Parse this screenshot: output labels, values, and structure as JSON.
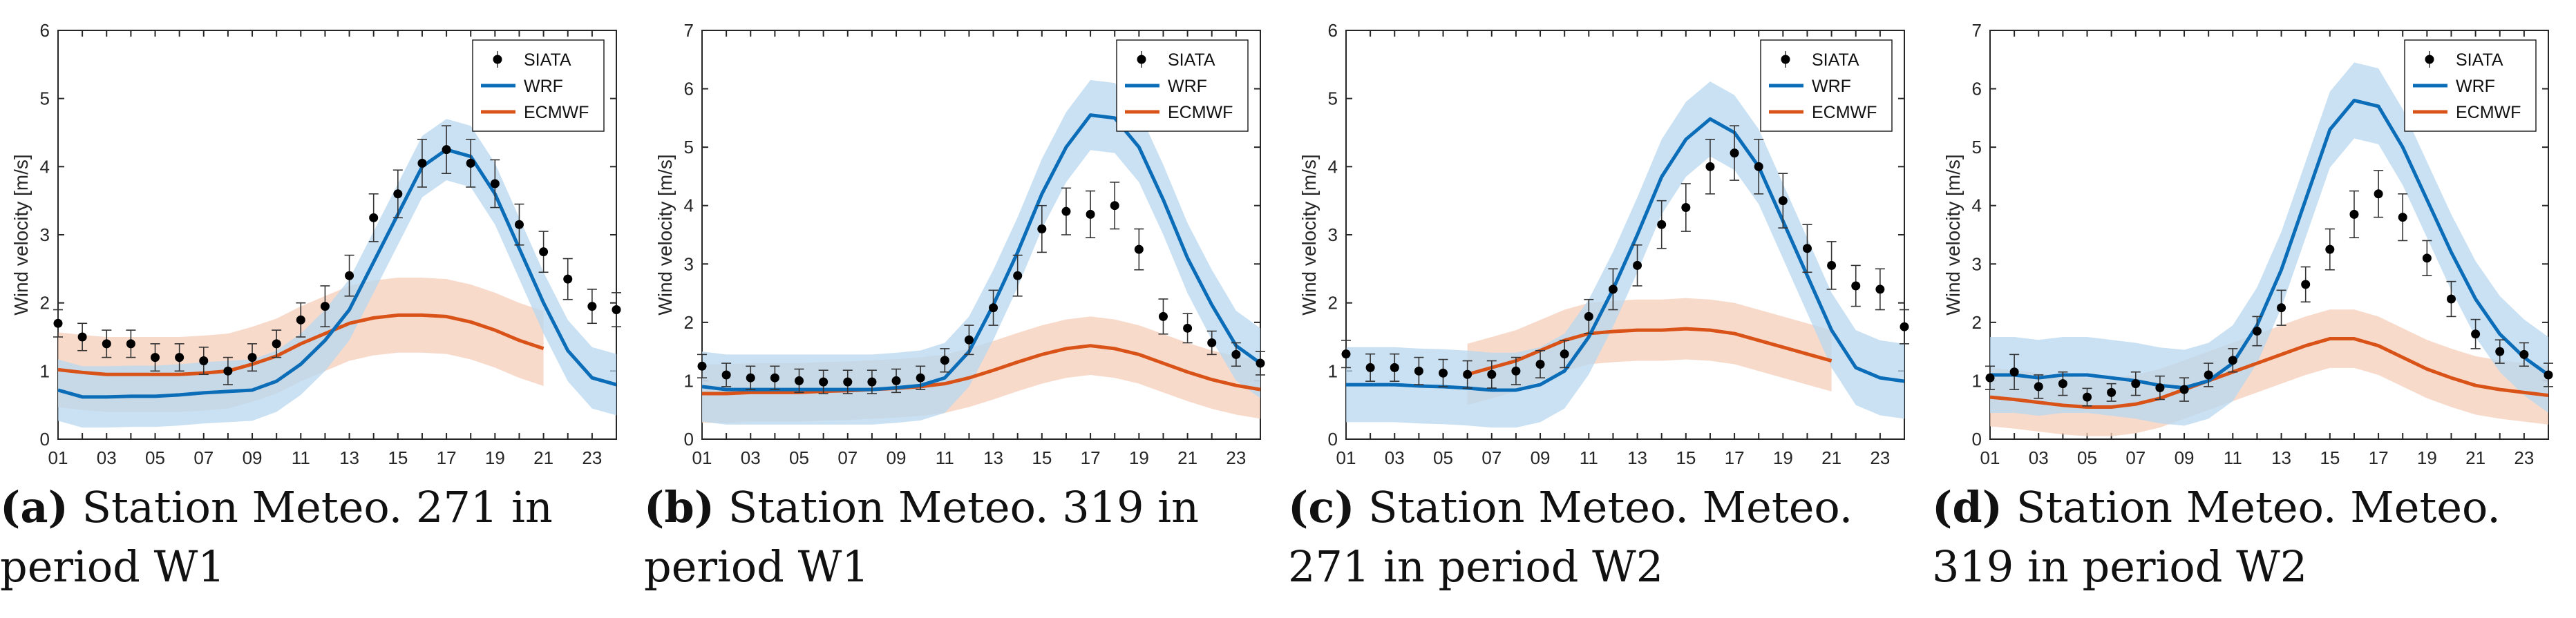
{
  "figure": {
    "panels": [
      {
        "label": "(a)",
        "caption": "Station Meteo.  271 in period W1"
      },
      {
        "label": "(b)",
        "caption": "Station Meteo.  319 in period W1"
      },
      {
        "label": "(c)",
        "caption": "Station Meteo. Meteo. 271 in period W2"
      },
      {
        "label": "(d)",
        "caption": "Station Meteo. Meteo. 319 in period W2"
      }
    ]
  },
  "colors": {
    "siata": "#000000",
    "wrf": "#0b6cb8",
    "wrf_band": "#b7d7ef",
    "ecmwf": "#d95319",
    "ecmwf_band": "#f6cdb9"
  },
  "chart_data": [
    {
      "type": "line",
      "title": "",
      "xlabel": "",
      "ylabel": "Wind velocity [m/s]",
      "ylim": [
        0,
        6
      ],
      "yticks": [
        "0",
        "1",
        "2",
        "3",
        "4",
        "5",
        "6"
      ],
      "xticks": [
        "01",
        "03",
        "05",
        "07",
        "09",
        "11",
        "13",
        "15",
        "17",
        "19",
        "21",
        "23"
      ],
      "legend": [
        "SIATA",
        "WRF",
        "ECMWF"
      ],
      "legend_position": "top-right",
      "series": [
        {
          "name": "SIATA",
          "kind": "errorbar",
          "x": [
            1,
            2,
            3,
            4,
            5,
            6,
            7,
            8,
            9,
            10,
            11,
            12,
            13,
            14,
            15,
            16,
            17,
            18,
            19,
            20,
            21,
            22,
            23,
            24
          ],
          "values": [
            1.7,
            1.5,
            1.4,
            1.4,
            1.2,
            1.2,
            1.15,
            1.0,
            1.2,
            1.4,
            1.75,
            1.95,
            2.4,
            3.25,
            3.6,
            4.05,
            4.25,
            4.05,
            3.75,
            3.15,
            2.75,
            2.35,
            1.95,
            1.9
          ],
          "err": [
            0.2,
            0.2,
            0.2,
            0.2,
            0.2,
            0.2,
            0.2,
            0.2,
            0.2,
            0.2,
            0.25,
            0.3,
            0.3,
            0.35,
            0.35,
            0.35,
            0.35,
            0.35,
            0.35,
            0.3,
            0.3,
            0.3,
            0.25,
            0.25
          ]
        },
        {
          "name": "WRF",
          "kind": "line",
          "x": [
            1,
            2,
            3,
            4,
            5,
            6,
            7,
            8,
            9,
            10,
            11,
            12,
            13,
            14,
            15,
            16,
            17,
            18,
            19,
            20,
            21,
            22,
            23,
            24
          ],
          "values": [
            0.72,
            0.62,
            0.62,
            0.63,
            0.63,
            0.65,
            0.68,
            0.7,
            0.72,
            0.85,
            1.1,
            1.45,
            1.9,
            2.6,
            3.3,
            4.0,
            4.25,
            4.15,
            3.6,
            2.8,
            2.0,
            1.3,
            0.9,
            0.8
          ],
          "band": 0.45
        },
        {
          "name": "ECMWF",
          "kind": "line",
          "x": [
            1,
            2,
            3,
            4,
            5,
            6,
            7,
            8,
            9,
            10,
            11,
            12,
            13,
            14,
            15,
            16,
            17,
            18,
            19,
            20,
            21
          ],
          "values": [
            1.02,
            0.98,
            0.95,
            0.95,
            0.95,
            0.95,
            0.97,
            1.0,
            1.1,
            1.22,
            1.4,
            1.55,
            1.7,
            1.78,
            1.82,
            1.82,
            1.8,
            1.72,
            1.6,
            1.45,
            1.33
          ],
          "band": 0.55
        }
      ]
    },
    {
      "type": "line",
      "title": "",
      "xlabel": "",
      "ylabel": "Wind velocity [m/s]",
      "ylim": [
        0,
        7
      ],
      "yticks": [
        "0",
        "1",
        "2",
        "3",
        "4",
        "5",
        "6",
        "7"
      ],
      "xticks": [
        "01",
        "03",
        "05",
        "07",
        "09",
        "11",
        "13",
        "15",
        "17",
        "19",
        "21",
        "23"
      ],
      "legend": [
        "SIATA",
        "WRF",
        "ECMWF"
      ],
      "legend_position": "top-right",
      "series": [
        {
          "name": "SIATA",
          "kind": "errorbar",
          "x": [
            1,
            2,
            3,
            4,
            5,
            6,
            7,
            8,
            9,
            10,
            11,
            12,
            13,
            14,
            15,
            16,
            17,
            18,
            19,
            20,
            21,
            22,
            23,
            24
          ],
          "values": [
            1.25,
            1.1,
            1.05,
            1.05,
            1.0,
            0.98,
            0.98,
            0.98,
            1.0,
            1.05,
            1.35,
            1.7,
            2.25,
            2.8,
            3.6,
            3.9,
            3.85,
            4.0,
            3.25,
            2.1,
            1.9,
            1.65,
            1.45,
            1.3
          ],
          "err": [
            0.2,
            0.2,
            0.2,
            0.2,
            0.2,
            0.2,
            0.2,
            0.2,
            0.2,
            0.2,
            0.2,
            0.25,
            0.3,
            0.35,
            0.4,
            0.4,
            0.4,
            0.4,
            0.35,
            0.3,
            0.25,
            0.2,
            0.2,
            0.2
          ]
        },
        {
          "name": "WRF",
          "kind": "line",
          "x": [
            1,
            2,
            3,
            4,
            5,
            6,
            7,
            8,
            9,
            10,
            11,
            12,
            13,
            14,
            15,
            16,
            17,
            18,
            19,
            20,
            21,
            22,
            23,
            24
          ],
          "values": [
            0.9,
            0.85,
            0.85,
            0.85,
            0.85,
            0.85,
            0.85,
            0.85,
            0.88,
            0.92,
            1.05,
            1.5,
            2.3,
            3.2,
            4.2,
            5.0,
            5.55,
            5.5,
            5.0,
            4.1,
            3.1,
            2.3,
            1.6,
            1.3
          ],
          "band": 0.6
        },
        {
          "name": "ECMWF",
          "kind": "line",
          "x": [
            1,
            2,
            3,
            4,
            5,
            6,
            7,
            8,
            9,
            10,
            11,
            12,
            13,
            14,
            15,
            16,
            17,
            18,
            19,
            20,
            21,
            22,
            23,
            24
          ],
          "values": [
            0.78,
            0.78,
            0.8,
            0.8,
            0.8,
            0.82,
            0.83,
            0.85,
            0.87,
            0.9,
            0.95,
            1.05,
            1.18,
            1.32,
            1.45,
            1.55,
            1.6,
            1.55,
            1.45,
            1.3,
            1.15,
            1.02,
            0.92,
            0.85
          ],
          "band": 0.5
        }
      ]
    },
    {
      "type": "line",
      "title": "",
      "xlabel": "",
      "ylabel": "Wind velocity [m/s]",
      "ylim": [
        0,
        6
      ],
      "yticks": [
        "0",
        "1",
        "2",
        "3",
        "4",
        "5",
        "6"
      ],
      "xticks": [
        "01",
        "03",
        "05",
        "07",
        "09",
        "11",
        "13",
        "15",
        "17",
        "19",
        "21",
        "23"
      ],
      "legend": [
        "SIATA",
        "WRF",
        "ECMWF"
      ],
      "legend_position": "top-right",
      "series": [
        {
          "name": "SIATA",
          "kind": "errorbar",
          "x": [
            1,
            2,
            3,
            4,
            5,
            6,
            7,
            8,
            9,
            10,
            11,
            12,
            13,
            14,
            15,
            16,
            17,
            18,
            19,
            20,
            21,
            22,
            23,
            24
          ],
          "values": [
            1.25,
            1.05,
            1.05,
            1.0,
            0.97,
            0.95,
            0.95,
            1.0,
            1.1,
            1.25,
            1.8,
            2.2,
            2.55,
            3.15,
            3.4,
            4.0,
            4.2,
            4.0,
            3.5,
            2.8,
            2.55,
            2.25,
            2.2,
            1.65
          ],
          "err": [
            0.2,
            0.2,
            0.2,
            0.2,
            0.2,
            0.2,
            0.2,
            0.2,
            0.2,
            0.2,
            0.25,
            0.3,
            0.3,
            0.35,
            0.35,
            0.4,
            0.4,
            0.4,
            0.4,
            0.35,
            0.35,
            0.3,
            0.3,
            0.25
          ]
        },
        {
          "name": "WRF",
          "kind": "line",
          "x": [
            1,
            2,
            3,
            4,
            5,
            6,
            7,
            8,
            9,
            10,
            11,
            12,
            13,
            14,
            15,
            16,
            17,
            18,
            19,
            20,
            21,
            22,
            23,
            24
          ],
          "values": [
            0.8,
            0.8,
            0.8,
            0.78,
            0.77,
            0.75,
            0.72,
            0.72,
            0.8,
            1.0,
            1.5,
            2.2,
            3.0,
            3.85,
            4.4,
            4.7,
            4.5,
            4.0,
            3.2,
            2.4,
            1.6,
            1.05,
            0.9,
            0.85
          ],
          "band": 0.55
        },
        {
          "name": "ECMWF",
          "kind": "line",
          "x": [
            6,
            7,
            8,
            9,
            10,
            11,
            12,
            13,
            14,
            15,
            16,
            17,
            18,
            19,
            20,
            21
          ],
          "values": [
            0.95,
            1.05,
            1.15,
            1.3,
            1.45,
            1.55,
            1.58,
            1.6,
            1.6,
            1.62,
            1.6,
            1.55,
            1.45,
            1.35,
            1.25,
            1.15
          ],
          "band": 0.45
        }
      ]
    },
    {
      "type": "line",
      "title": "",
      "xlabel": "",
      "ylabel": "Wind velocity [m/s]",
      "ylim": [
        0,
        7
      ],
      "yticks": [
        "0",
        "1",
        "2",
        "3",
        "4",
        "5",
        "6",
        "7"
      ],
      "xticks": [
        "01",
        "03",
        "05",
        "07",
        "09",
        "11",
        "13",
        "15",
        "17",
        "19",
        "21",
        "23"
      ],
      "legend": [
        "SIATA",
        "WRF",
        "ECMWF"
      ],
      "legend_position": "top-right",
      "series": [
        {
          "name": "SIATA",
          "kind": "errorbar",
          "x": [
            1,
            2,
            3,
            4,
            5,
            6,
            7,
            8,
            9,
            10,
            11,
            12,
            13,
            14,
            15,
            16,
            17,
            18,
            19,
            20,
            21,
            22,
            23,
            24
          ],
          "values": [
            1.05,
            1.15,
            0.9,
            0.95,
            0.72,
            0.8,
            0.95,
            0.88,
            0.85,
            1.1,
            1.35,
            1.85,
            2.25,
            2.65,
            3.25,
            3.85,
            4.2,
            3.8,
            3.1,
            2.4,
            1.8,
            1.5,
            1.45,
            1.1
          ],
          "err": [
            0.2,
            0.3,
            0.2,
            0.2,
            0.15,
            0.15,
            0.2,
            0.2,
            0.2,
            0.2,
            0.2,
            0.25,
            0.3,
            0.3,
            0.35,
            0.4,
            0.4,
            0.4,
            0.3,
            0.3,
            0.25,
            0.2,
            0.2,
            0.2
          ]
        },
        {
          "name": "WRF",
          "kind": "line",
          "x": [
            1,
            2,
            3,
            4,
            5,
            6,
            7,
            8,
            9,
            10,
            11,
            12,
            13,
            14,
            15,
            16,
            17,
            18,
            19,
            20,
            21,
            22,
            23,
            24
          ],
          "values": [
            1.1,
            1.1,
            1.05,
            1.1,
            1.1,
            1.05,
            1.0,
            0.92,
            0.88,
            1.0,
            1.3,
            1.95,
            2.9,
            4.1,
            5.3,
            5.8,
            5.7,
            5.0,
            4.1,
            3.2,
            2.4,
            1.8,
            1.4,
            1.1
          ],
          "band": 0.65
        },
        {
          "name": "ECMWF",
          "kind": "line",
          "x": [
            1,
            2,
            3,
            4,
            5,
            6,
            7,
            8,
            9,
            10,
            11,
            12,
            13,
            14,
            15,
            16,
            17,
            18,
            19,
            20,
            21,
            22,
            23,
            24
          ],
          "values": [
            0.72,
            0.68,
            0.63,
            0.58,
            0.55,
            0.55,
            0.6,
            0.7,
            0.85,
            1.0,
            1.15,
            1.3,
            1.45,
            1.6,
            1.72,
            1.72,
            1.6,
            1.4,
            1.2,
            1.05,
            0.92,
            0.85,
            0.8,
            0.75
          ],
          "band": 0.5
        }
      ]
    }
  ]
}
